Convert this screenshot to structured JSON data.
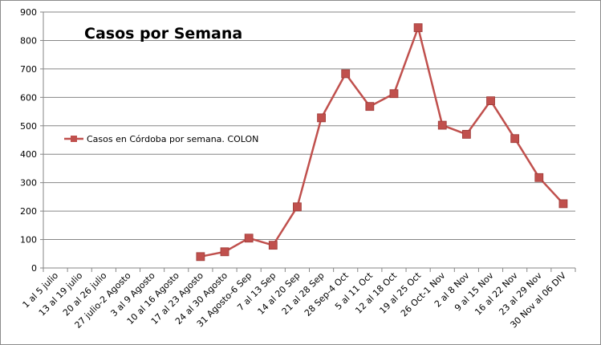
{
  "chart_data": {
    "type": "line",
    "title": "Casos por Semana",
    "xlabel": "",
    "ylabel": "",
    "ylim": [
      0,
      900
    ],
    "yticks": [
      0,
      100,
      200,
      300,
      400,
      500,
      600,
      700,
      800,
      900
    ],
    "grid": true,
    "legend_position": "left",
    "categories": [
      "1 al 5 julio",
      "13 al 19 julio",
      "20 al 26 julio",
      "27 julio-2 Agosto",
      "3 al 9 Agosto",
      "10 al 16 Agosto",
      "17 al 23 Agosto",
      "24 al 30 Agosto",
      "31 Agosto-6 Sep",
      "7 al 13 Sep",
      "14 al 20 Sep",
      "21 al 28 Sep",
      "28 Sep-4 Oct",
      "5 al 11 Oct",
      "12 al 18 Oct",
      "19 al 25 Oct",
      "26 Oct-1 Nov",
      "2 al 8 Nov",
      "9 al 15 Nov",
      "16 al 22 Nov",
      "23 al 29 Nov",
      "30 Nov al 06 DIV"
    ],
    "series": [
      {
        "name": "Casos en Córdoba por semana. COLON",
        "color": "#c0504d",
        "values": [
          null,
          null,
          null,
          null,
          null,
          null,
          40,
          57,
          105,
          80,
          215,
          528,
          683,
          568,
          613,
          845,
          502,
          470,
          588,
          455,
          318,
          226
        ]
      }
    ]
  }
}
